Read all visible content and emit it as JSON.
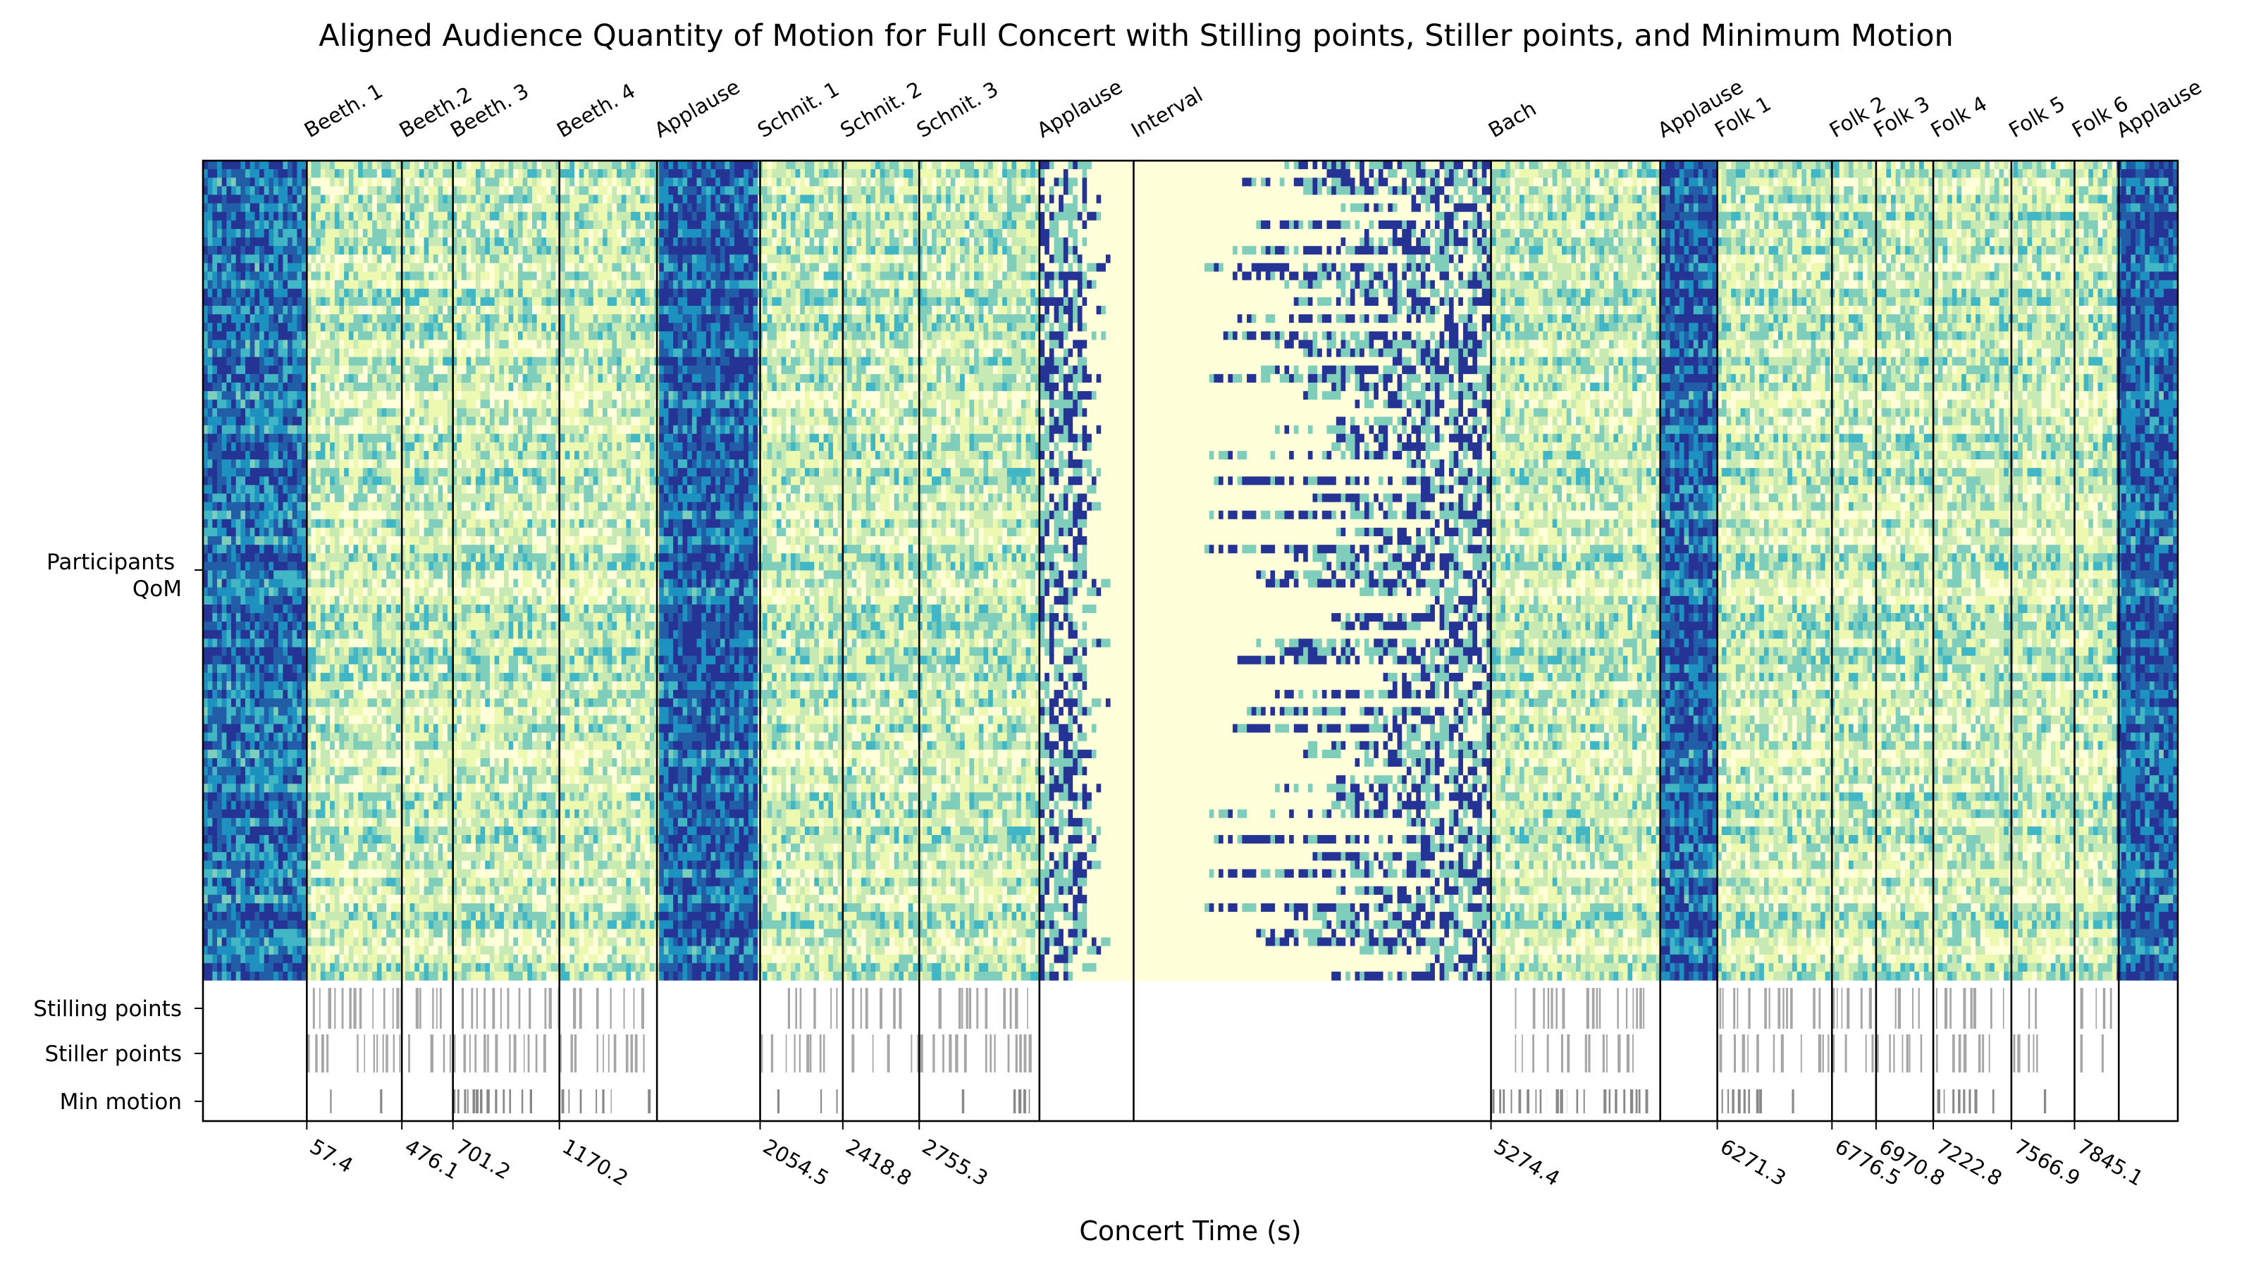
{
  "chart_data": {
    "type": "heatmap",
    "title": "Aligned Audience Quantity of Motion for Full Concert with Stilling points, Stiller points, and Minimum Motion",
    "xlabel": "Concert Time (s)",
    "ylabel": "",
    "xlim": [
      -400,
      8300
    ],
    "y_tick_labels": [
      "Participants QoM",
      "Stilling points",
      "Stiller points",
      "Min motion"
    ],
    "colormap": {
      "name": "YlGnBu",
      "stops": [
        "#ffffd9",
        "#edf8b1",
        "#c7e9b4",
        "#7fcdbb",
        "#41b6c4",
        "#1d91c0",
        "#225ea8",
        "#253494"
      ]
    },
    "participant_rows": 96,
    "segments": [
      {
        "label": "Beeth. 1",
        "start": 57.4,
        "tick": "57.4"
      },
      {
        "label": "Beeth.2",
        "start": 476.1,
        "tick": "476.1"
      },
      {
        "label": "Beeth. 3",
        "start": 701.2,
        "tick": "701.2"
      },
      {
        "label": "Beeth. 4",
        "start": 1170.2,
        "tick": "1170.2"
      },
      {
        "label": "Applause",
        "start": 1600,
        "tick": ""
      },
      {
        "label": "Schnit. 1",
        "start": 2054.5,
        "tick": "2054.5"
      },
      {
        "label": "Schnit. 2",
        "start": 2418.8,
        "tick": "2418.8"
      },
      {
        "label": "Schnit. 3",
        "start": 2755.3,
        "tick": "2755.3"
      },
      {
        "label": "Applause",
        "start": 3285,
        "tick": ""
      },
      {
        "label": "Interval",
        "start": 3700,
        "tick": ""
      },
      {
        "label": "Bach",
        "start": 5274.4,
        "tick": "5274.4"
      },
      {
        "label": "Applause",
        "start": 6020,
        "tick": ""
      },
      {
        "label": "Folk 1",
        "start": 6271.3,
        "tick": "6271.3"
      },
      {
        "label": "Folk 2",
        "start": 6776.5,
        "tick": "6776.5"
      },
      {
        "label": "Folk 3",
        "start": 6970.8,
        "tick": "6970.8"
      },
      {
        "label": "Folk 4",
        "start": 7222.8,
        "tick": "7222.8"
      },
      {
        "label": "Folk 5",
        "start": 7566.9,
        "tick": "7566.9"
      },
      {
        "label": "Folk 6",
        "start": 7845.1,
        "tick": "7845.1"
      },
      {
        "label": "Applause",
        "start": 8040,
        "tick": ""
      }
    ],
    "stilling_points_ranges": [
      [
        57,
        470
      ],
      [
        480,
        700
      ],
      [
        705,
        1165
      ],
      [
        1175,
        1580
      ],
      [
        2060,
        2410
      ],
      [
        2425,
        2750
      ],
      [
        2760,
        3270
      ],
      [
        5380,
        5950
      ],
      [
        6280,
        6770
      ],
      [
        6780,
        6965
      ],
      [
        6975,
        7200
      ],
      [
        7235,
        7560
      ],
      [
        7575,
        7750
      ],
      [
        7870,
        8010
      ]
    ],
    "stiller_points_ranges": [
      [
        57,
        470
      ],
      [
        480,
        700
      ],
      [
        705,
        1165
      ],
      [
        1175,
        1580
      ],
      [
        2060,
        2410
      ],
      [
        2425,
        2750
      ],
      [
        2760,
        3270
      ],
      [
        5380,
        5950
      ],
      [
        6280,
        6770
      ],
      [
        6780,
        6965
      ],
      [
        6975,
        7200
      ],
      [
        7235,
        7560
      ],
      [
        7575,
        7750
      ],
      [
        7870,
        8010
      ]
    ],
    "min_motion_ranges": [
      [
        160,
        170
      ],
      [
        280,
        290
      ],
      [
        380,
        390
      ],
      [
        700,
        1050
      ],
      [
        1160,
        1230
      ],
      [
        1260,
        1280
      ],
      [
        1330,
        1400
      ],
      [
        1560,
        1580
      ],
      [
        2130,
        2140
      ],
      [
        2320,
        2330
      ],
      [
        2390,
        2420
      ],
      [
        2910,
        2960
      ],
      [
        3170,
        3270
      ],
      [
        5280,
        5520
      ],
      [
        5560,
        5610
      ],
      [
        5650,
        5700
      ],
      [
        5770,
        5970
      ],
      [
        6290,
        6480
      ],
      [
        6600,
        6610
      ],
      [
        7240,
        7520
      ],
      [
        7710,
        7720
      ]
    ],
    "grid": false,
    "legend": "none"
  }
}
